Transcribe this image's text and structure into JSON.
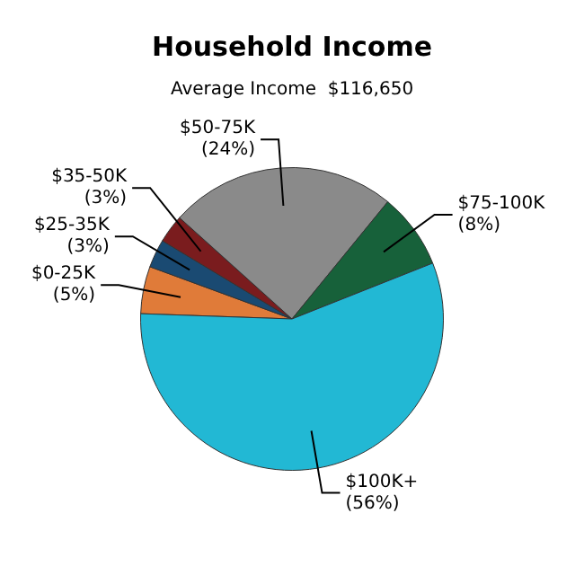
{
  "chart_data": {
    "type": "pie",
    "title": "Household Income",
    "subtitle": "Average Income  $116,650",
    "categories": [
      "$0-25K",
      "$25-35K",
      "$35-50K",
      "$50-75K",
      "$75-100K",
      "$100K+"
    ],
    "values": [
      5,
      3,
      3,
      24,
      8,
      56
    ],
    "value_labels": [
      "(5%)",
      "(3%)",
      "(3%)",
      "(24%)",
      "(8%)",
      "(56%)"
    ],
    "colors": [
      "#e07b39",
      "#1a4a72",
      "#7a1c1e",
      "#8a8a8a",
      "#17613a",
      "#22b8d4"
    ],
    "legend": false
  }
}
